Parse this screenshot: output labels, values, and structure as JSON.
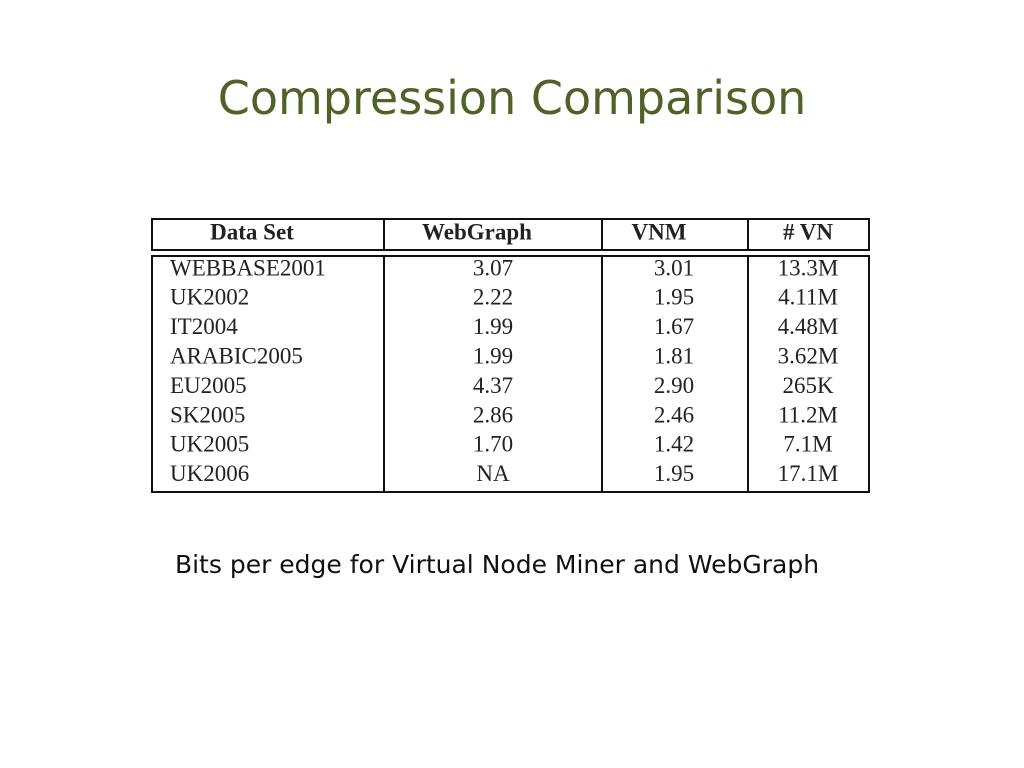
{
  "header": {
    "title": "Compression Comparison"
  },
  "table": {
    "columns": [
      "Data Set",
      "WebGraph",
      "VNM",
      "# VN"
    ],
    "rows": [
      [
        "WEBBASE2001",
        "3.07",
        "3.01",
        "13.3M"
      ],
      [
        "UK2002",
        "2.22",
        "1.95",
        "4.11M"
      ],
      [
        "IT2004",
        "1.99",
        "1.67",
        "4.48M"
      ],
      [
        "ARABIC2005",
        "1.99",
        "1.81",
        "3.62M"
      ],
      [
        "EU2005",
        "4.37",
        "2.90",
        "265K"
      ],
      [
        "SK2005",
        "2.86",
        "2.46",
        "11.2M"
      ],
      [
        "UK2005",
        "1.70",
        "1.42",
        "7.1M"
      ],
      [
        "UK2006",
        "NA",
        "1.95",
        "17.1M"
      ]
    ]
  },
  "caption": "Bits per edge for Virtual Node Miner and WebGraph"
}
